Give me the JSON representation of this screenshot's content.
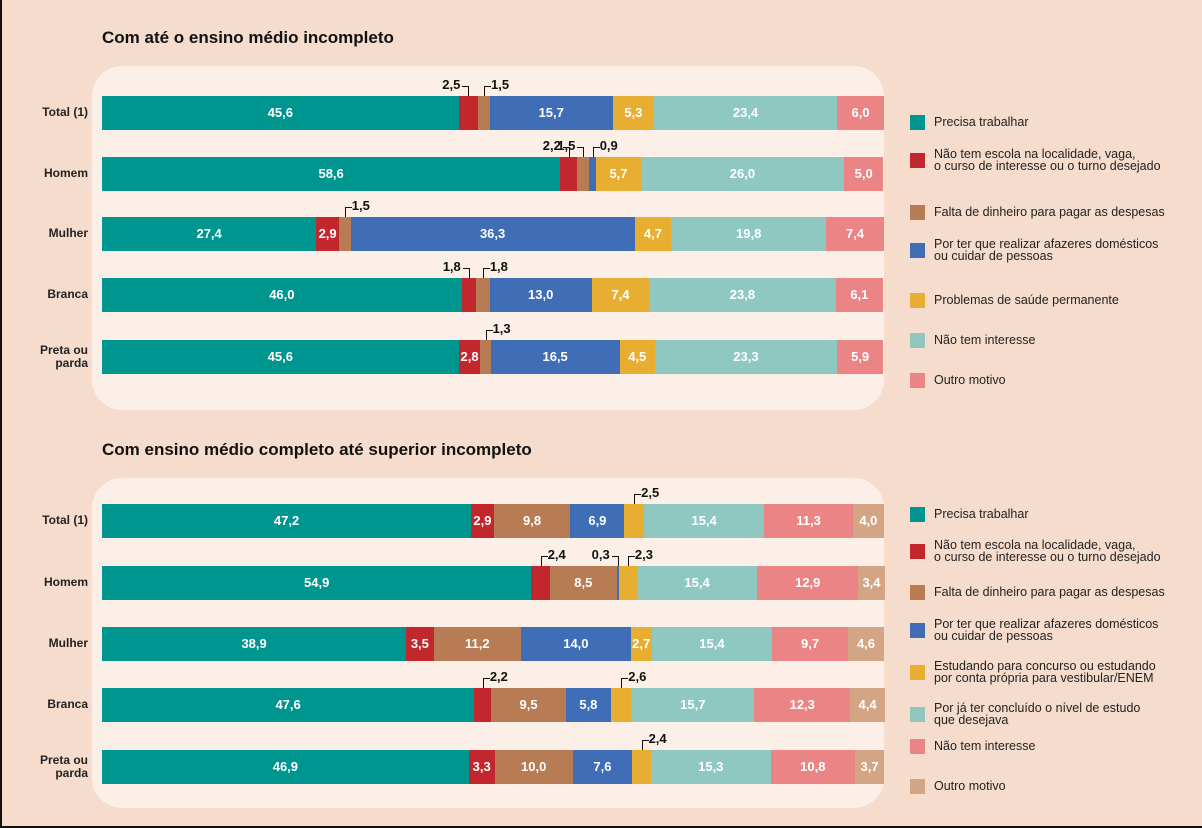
{
  "chart_data": [
    {
      "type": "bar",
      "orientation": "horizontal",
      "stacked": true,
      "title": "Com até o ensino médio incompleto",
      "categories": [
        "Total (1)",
        "Homem",
        "Mulher",
        "Branca",
        "Preta ou\nparda"
      ],
      "xlim": [
        0,
        100
      ],
      "series": [
        {
          "name": "Precisa trabalhar",
          "color": "#009690",
          "values": [
            45.6,
            58.6,
            27.4,
            46.0,
            45.6
          ],
          "value_labels": [
            "45,6",
            "58,6",
            "27,4",
            "46,0",
            "45,6"
          ]
        },
        {
          "name": "Não tem escola na localidade, vaga,\no curso de interesse ou o turno desejado",
          "color": "#c1272d",
          "values": [
            2.5,
            2.2,
            2.9,
            1.8,
            2.8
          ],
          "value_labels": [
            "2,5",
            "2,2",
            "2,9",
            "1,8",
            "2,8"
          ]
        },
        {
          "name": "Falta de dinheiro para pagar as despesas",
          "color": "#b87c55",
          "values": [
            1.5,
            1.5,
            1.5,
            1.8,
            1.3
          ],
          "value_labels": [
            "1,5",
            "1,5",
            "1,5",
            "1,8",
            "1,3"
          ]
        },
        {
          "name": "Por ter que realizar afazeres domésticos\nou cuidar de pessoas",
          "color": "#3f6db6",
          "values": [
            15.7,
            0.9,
            36.3,
            13.0,
            16.5
          ],
          "value_labels": [
            "15,7",
            "0,9",
            "36,3",
            "13,0",
            "16,5"
          ]
        },
        {
          "name": "Problemas de saúde permanente",
          "color": "#e8ae32",
          "values": [
            5.3,
            5.7,
            4.7,
            7.4,
            4.5
          ],
          "value_labels": [
            "5,3",
            "5,7",
            "4,7",
            "7,4",
            "4,5"
          ]
        },
        {
          "name": "Não tem interesse",
          "color": "#8ec8c1",
          "values": [
            23.4,
            26.0,
            19.8,
            23.8,
            23.3
          ],
          "value_labels": [
            "23,4",
            "26,0",
            "19,8",
            "23,8",
            "23,3"
          ]
        },
        {
          "name": "Outro motivo",
          "color": "#eb8585",
          "values": [
            6.0,
            5.0,
            7.4,
            6.1,
            5.9
          ],
          "value_labels": [
            "6,0",
            "5,0",
            "7,4",
            "6,1",
            "5,9"
          ]
        }
      ]
    },
    {
      "type": "bar",
      "orientation": "horizontal",
      "stacked": true,
      "title": "Com ensino médio completo até superior incompleto",
      "categories": [
        "Total (1)",
        "Homem",
        "Mulher",
        "Branca",
        "Preta ou\nparda"
      ],
      "xlim": [
        0,
        100
      ],
      "series": [
        {
          "name": "Precisa trabalhar",
          "color": "#009690",
          "values": [
            47.2,
            54.9,
            38.9,
            47.6,
            46.9
          ],
          "value_labels": [
            "47,2",
            "54,9",
            "38,9",
            "47,6",
            "46,9"
          ]
        },
        {
          "name": "Não tem escola na localidade, vaga,\no curso de interesse ou o turno desejado",
          "color": "#c1272d",
          "values": [
            2.9,
            2.4,
            3.5,
            2.2,
            3.3
          ],
          "value_labels": [
            "2,9",
            "2,4",
            "3,5",
            "2,2",
            "3,3"
          ]
        },
        {
          "name": "Falta de dinheiro para pagar as despesas",
          "color": "#b87c55",
          "values": [
            9.8,
            8.5,
            11.2,
            9.5,
            10.0
          ],
          "value_labels": [
            "9,8",
            "8,5",
            "11,2",
            "9,5",
            "10,0"
          ]
        },
        {
          "name": "Por ter que realizar afazeres domésticos\nou cuidar de pessoas",
          "color": "#3f6db6",
          "values": [
            6.9,
            0.3,
            14.0,
            5.8,
            7.6
          ],
          "value_labels": [
            "6,9",
            "0,3",
            "14,0",
            "5,8",
            "7,6"
          ]
        },
        {
          "name": "Estudando para concurso ou estudando\npor conta própria para vestibular/ENEM",
          "color": "#e8ae32",
          "values": [
            2.5,
            2.3,
            2.7,
            2.6,
            2.4
          ],
          "value_labels": [
            "2,5",
            "2,3",
            "2,7",
            "2,6",
            "2,4"
          ]
        },
        {
          "name": "Por já ter concluído o nível de estudo\nque desejava",
          "color": "#8ec8c1",
          "values": [
            15.4,
            15.4,
            15.4,
            15.7,
            15.3
          ],
          "value_labels": [
            "15,4",
            "15,4",
            "15,4",
            "15,7",
            "15,3"
          ]
        },
        {
          "name": "Não tem interesse",
          "color": "#eb8585",
          "values": [
            11.3,
            12.9,
            9.7,
            12.3,
            10.8
          ],
          "value_labels": [
            "11,3",
            "12,9",
            "9,7",
            "12,3",
            "10,8"
          ]
        },
        {
          "name": "Outro motivo",
          "color": "#d3a585",
          "values": [
            4.0,
            3.4,
            4.6,
            4.4,
            3.7
          ],
          "value_labels": [
            "4,0",
            "3,4",
            "4,6",
            "4,4",
            "3,7"
          ]
        }
      ]
    }
  ]
}
